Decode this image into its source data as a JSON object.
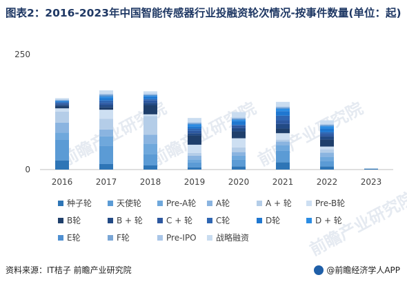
{
  "title": "图表2：2016-2023年中国智能传感器行业投融资轮次情况-按事件数量(单位：起)",
  "source": "资料来源：IT桔子 前瞻产业研究院",
  "brand": "@前瞻经济学人APP",
  "watermark": "前瞻产业研究院",
  "chart_data": {
    "type": "bar",
    "stacked": true,
    "categories": [
      "2016",
      "2017",
      "2018",
      "2019",
      "2020",
      "2021",
      "2022",
      "2023"
    ],
    "ylim": [
      0,
      250
    ],
    "yticks": [
      0,
      250
    ],
    "grid": false,
    "legend_position": "bottom",
    "series": [
      {
        "name": "种子轮",
        "color": "#2e75b6",
        "values": [
          20,
          12,
          9,
          5,
          7,
          16,
          7,
          2
        ]
      },
      {
        "name": "天使轮",
        "color": "#5b9bd5",
        "values": [
          45,
          40,
          25,
          10,
          15,
          25,
          12,
          0
        ]
      },
      {
        "name": "Pre-A轮",
        "color": "#6fa8dc",
        "values": [
          15,
          20,
          22,
          7,
          8,
          12,
          9,
          0
        ]
      },
      {
        "name": "A轮",
        "color": "#8ab4e0",
        "values": [
          22,
          15,
          20,
          8,
          8,
          8,
          9,
          0
        ]
      },
      {
        "name": "A + 轮",
        "color": "#b4cde8",
        "values": [
          24,
          23,
          40,
          6,
          10,
          4,
          7,
          0
        ]
      },
      {
        "name": "Pre-B轮",
        "color": "#cddff2",
        "values": [
          7,
          20,
          4,
          18,
          20,
          14,
          6,
          0
        ]
      },
      {
        "name": "B轮",
        "color": "#1f3f6b",
        "values": [
          5,
          5,
          20,
          20,
          15,
          10,
          15,
          0
        ]
      },
      {
        "name": "B + 轮",
        "color": "#224a85",
        "values": [
          3,
          5,
          5,
          5,
          7,
          10,
          7,
          0
        ]
      },
      {
        "name": "C + 轮",
        "color": "#2d58a0",
        "values": [
          3,
          5,
          5,
          5,
          5,
          8,
          5,
          0
        ]
      },
      {
        "name": "C轮",
        "color": "#2f66b2",
        "values": [
          2,
          5,
          3,
          5,
          2,
          10,
          4,
          0
        ]
      },
      {
        "name": "D轮",
        "color": "#1f77d0",
        "values": [
          2,
          5,
          5,
          5,
          8,
          10,
          8,
          0
        ]
      },
      {
        "name": "D + 轮",
        "color": "#2b8ce3",
        "values": [
          1,
          3,
          2,
          4,
          3,
          5,
          5,
          0
        ]
      },
      {
        "name": "E轮",
        "color": "#4f8fd1",
        "values": [
          1,
          3,
          2,
          2,
          2,
          2,
          2,
          0
        ]
      },
      {
        "name": "F轮",
        "color": "#7aa6d6",
        "values": [
          1,
          2,
          1,
          1,
          1,
          1,
          1,
          0
        ]
      },
      {
        "name": "Pre-IPO",
        "color": "#a9c6e8",
        "values": [
          1,
          2,
          2,
          2,
          2,
          2,
          2,
          0
        ]
      },
      {
        "name": "战略融资",
        "color": "#c9dcf0",
        "values": [
          3,
          7,
          5,
          9,
          12,
          10,
          8,
          0
        ]
      }
    ]
  }
}
